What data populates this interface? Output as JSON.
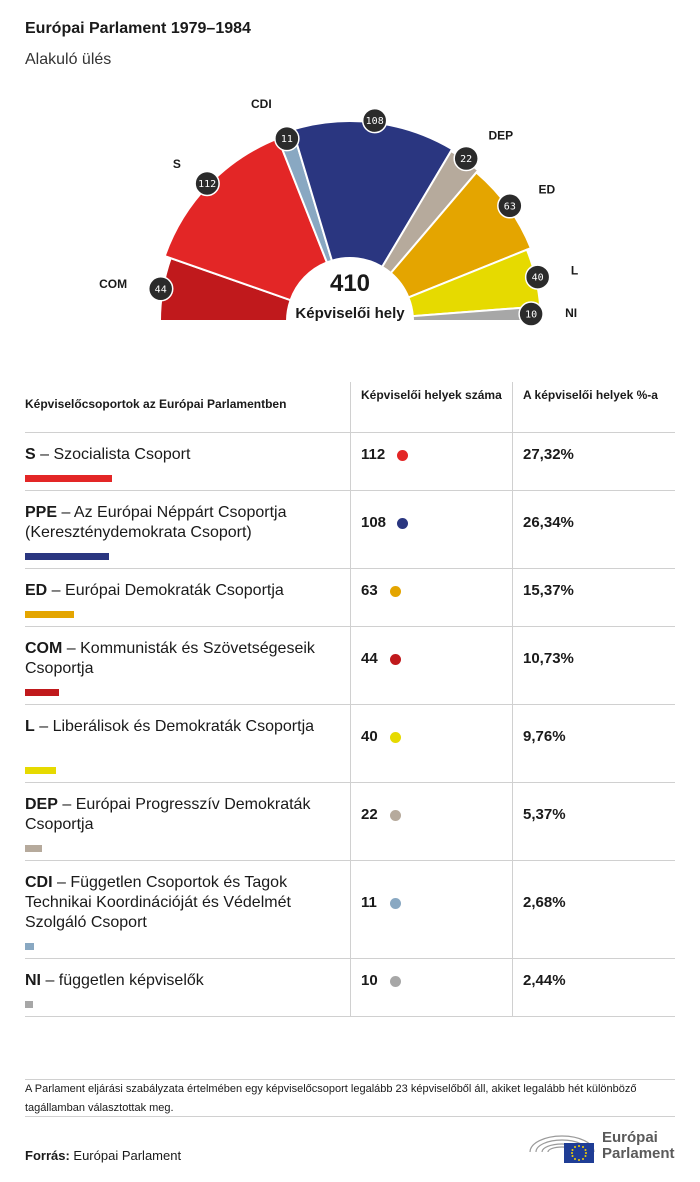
{
  "header": {
    "title": "Európai Parlament 1979–1984",
    "subtitle": "Alakuló ülés"
  },
  "chart_data": {
    "type": "hemicycle",
    "total": "410",
    "total_label": "Képviselői hely",
    "groups": [
      {
        "code": "COM",
        "seats": 44,
        "color": "#c0191c"
      },
      {
        "code": "S",
        "seats": 112,
        "color": "#e32626"
      },
      {
        "code": "CDI",
        "seats": 11,
        "color": "#89a8c2"
      },
      {
        "code": "PPE",
        "seats": 108,
        "color": "#2a3680"
      },
      {
        "code": "DEP",
        "seats": 22,
        "color": "#b6aa9c"
      },
      {
        "code": "ED",
        "seats": 63,
        "color": "#e4a500"
      },
      {
        "code": "L",
        "seats": 40,
        "color": "#e6da00"
      },
      {
        "code": "NI",
        "seats": 10,
        "color": "#a7a7a7"
      }
    ]
  },
  "table": {
    "headers": {
      "group": "Képviselőcsoportok az Európai Parlamentben",
      "seats": "Képviselői helyek száma",
      "pct": "A képviselői helyek %-a"
    },
    "rows": [
      {
        "code": "S",
        "name": " – Szocialista Csoport",
        "seats": "112",
        "pct": "27,32%",
        "color": "#e32626",
        "share": 27.32
      },
      {
        "code": "PPE",
        "name": " – Az Európai Néppárt Csoportja (Kereszténydemokrata Csoport)",
        "seats": "108",
        "pct": "26,34%",
        "color": "#2a3680",
        "share": 26.34
      },
      {
        "code": "ED",
        "name": " – Európai Demokraták Csoportja",
        "seats": "63",
        "pct": "15,37%",
        "color": "#e4a500",
        "share": 15.37
      },
      {
        "code": "COM",
        "name": " – Kommunisták és Szövetségeseik Csoportja",
        "seats": "44",
        "pct": "10,73%",
        "color": "#c0191c",
        "share": 10.73
      },
      {
        "code": "L",
        "name": " – Liberálisok és Demokraták Csoportja",
        "seats": "40",
        "pct": "9,76%",
        "color": "#e6da00",
        "share": 9.76
      },
      {
        "code": "DEP",
        "name": " – Európai Progresszív Demokraták Csoportja",
        "seats": "22",
        "pct": "5,37%",
        "color": "#b6aa9c",
        "share": 5.37
      },
      {
        "code": "CDI",
        "name": " – Független Csoportok és Tagok Technikai Koordinációját és Védelmét Szolgáló Csoport",
        "seats": "11",
        "pct": "2,68%",
        "color": "#89a8c2",
        "share": 2.68
      },
      {
        "code": "NI",
        "name": " – független képviselők",
        "seats": "10",
        "pct": "2,44%",
        "color": "#a7a7a7",
        "share": 2.44
      }
    ]
  },
  "footer": {
    "note": "A Parlament eljárási szabályzata értelmében egy képviselőcsoport legalább 23 képviselőből áll, akiket legalább hét különböző tagállamban választottak meg.",
    "source_label": "Forrás:",
    "source_value": " Európai Parlament",
    "logo_line1": "Európai",
    "logo_line2": "Parlament"
  }
}
